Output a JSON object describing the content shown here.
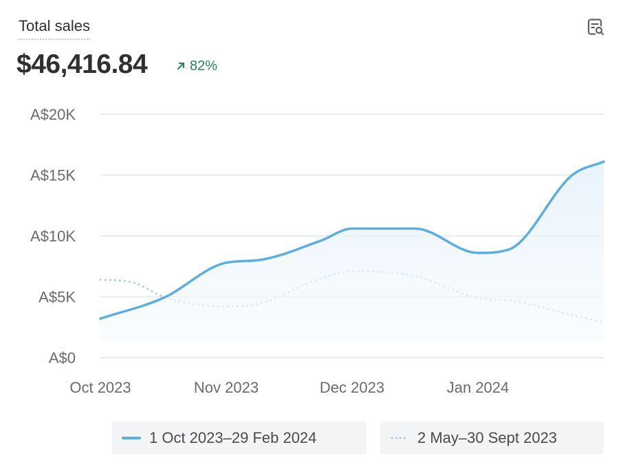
{
  "header": {
    "title": "Total sales",
    "total_value": "$46,416.84",
    "change": "82%",
    "change_direction": "up",
    "change_color": "#29845a",
    "explore_icon": "explore-data-icon"
  },
  "colors": {
    "current": "#5aaee0",
    "previous": "#9fcfe8",
    "grid": "#ebebeb",
    "axis_text": "#6b6b6b",
    "fill": "#eef6fc"
  },
  "chart_data": {
    "type": "line",
    "title": "Total sales",
    "y_ticks": [
      "A$0",
      "A$5K",
      "A$10K",
      "A$15K",
      "A$20K"
    ],
    "y_tick_values": [
      0,
      5000,
      10000,
      15000,
      20000
    ],
    "ylim": [
      0,
      20000
    ],
    "x_tick_labels": [
      "Oct 2023",
      "Nov 2023",
      "Dec 2023",
      "Jan 2024"
    ],
    "x_tick_positions": [
      0,
      1,
      2,
      3
    ],
    "xlim": [
      0,
      4
    ],
    "grid": true,
    "legend_position": "bottom",
    "series": [
      {
        "name": "1 Oct 2023–29 Feb 2024",
        "style": "solid",
        "area": true,
        "x": [
          0,
          0.5,
          1.0,
          1.25,
          1.75,
          2.0,
          2.5,
          3.0,
          3.25,
          3.75,
          4.0
        ],
        "y": [
          3200,
          4900,
          7800,
          8000,
          9600,
          10600,
          10600,
          8600,
          8900,
          15000,
          16100
        ]
      },
      {
        "name": "2 May–30 Sept 2023",
        "style": "dotted",
        "area": false,
        "x": [
          0,
          0.25,
          0.5,
          0.75,
          1.0,
          1.25,
          1.75,
          2.0,
          2.5,
          3.0,
          3.25,
          3.75,
          4.0
        ],
        "y": [
          6400,
          6200,
          5000,
          4400,
          4200,
          4400,
          6500,
          7100,
          6700,
          4900,
          4700,
          3500,
          2900
        ]
      }
    ]
  }
}
